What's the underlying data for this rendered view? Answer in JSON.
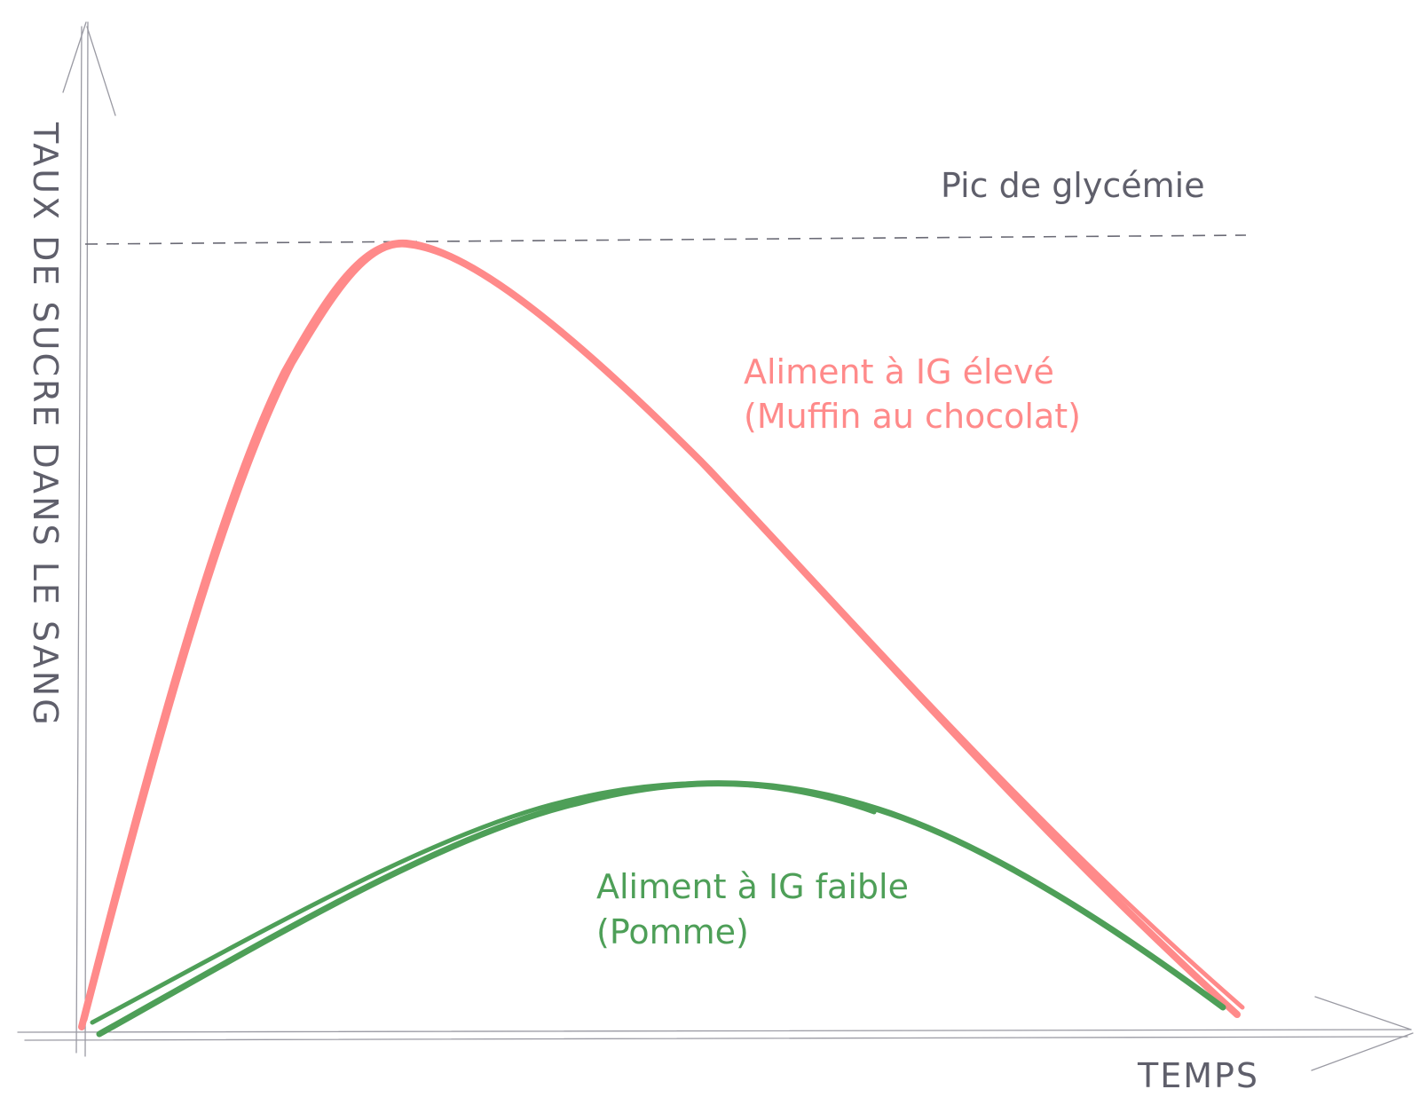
{
  "diagram": {
    "y_axis_label": "TAUX DE SUCRE DANS LE SANG",
    "x_axis_label": "TEMPS",
    "peak_label": "Pic de glycémie",
    "high_gi": {
      "line1": "Aliment à IG élevé",
      "line2": "(Muffin au chocolat)",
      "color": "#ff8a8a"
    },
    "low_gi": {
      "line1": "Aliment à IG faible",
      "line2": "(Pomme)",
      "color": "#4e9f58"
    },
    "axis_color": "#9a9aa3",
    "text_color": "#5f5f6b"
  }
}
